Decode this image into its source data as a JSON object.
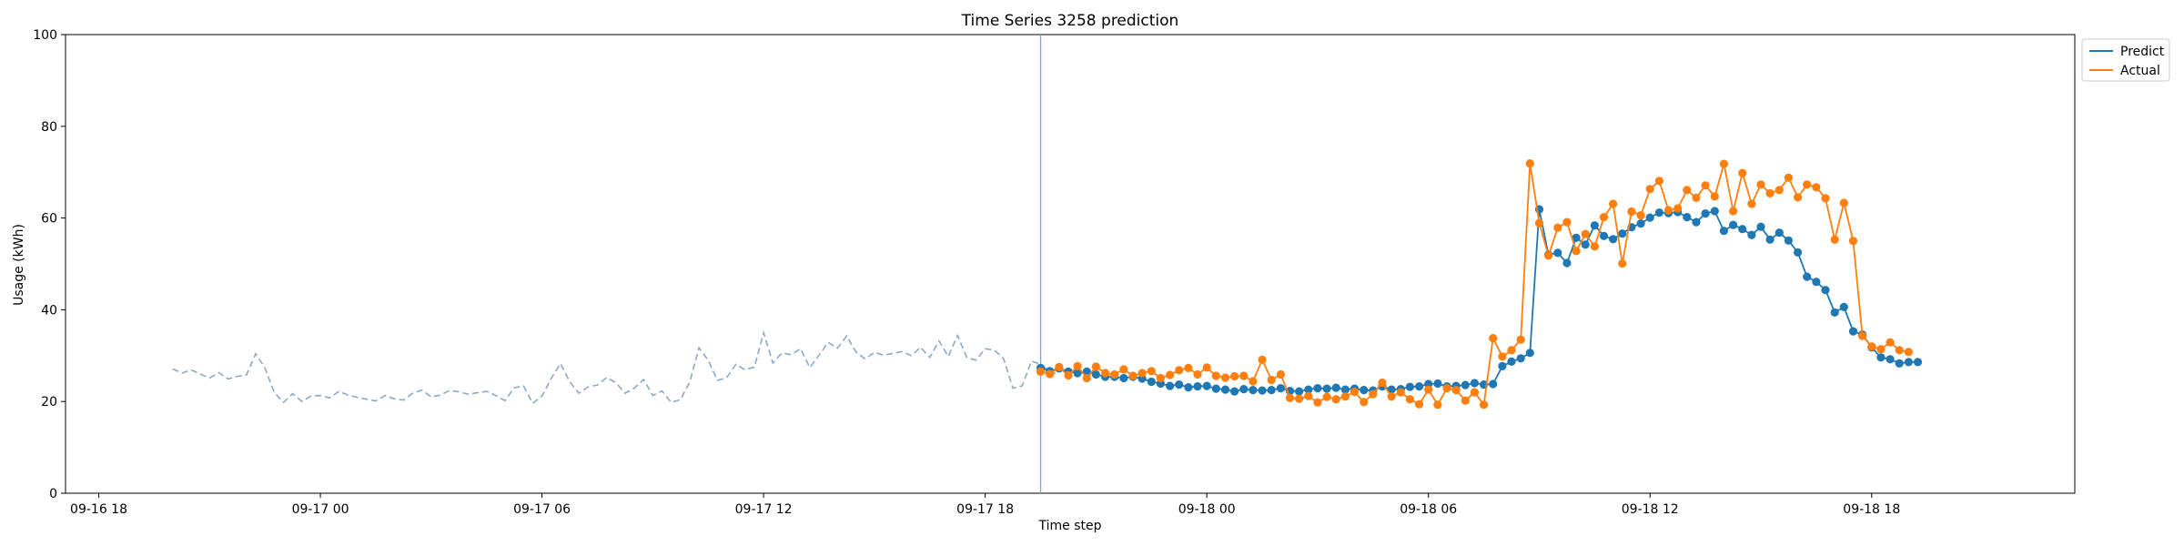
{
  "chart_data": {
    "type": "line",
    "title": "Time Series 3258 prediction",
    "xlabel": "Time step",
    "ylabel": "Usage (kWh)",
    "ylim": [
      0,
      100
    ],
    "y_ticks": [
      0,
      20,
      40,
      60,
      80,
      100
    ],
    "xlim": [
      "2023-09-16 17:06",
      "2023-09-18 23:30"
    ],
    "x_ticks": [
      {
        "label": "09-16 18",
        "t": "2023-09-16 18:00"
      },
      {
        "label": "09-17 00",
        "t": "2023-09-17 00:00"
      },
      {
        "label": "09-17 06",
        "t": "2023-09-17 06:00"
      },
      {
        "label": "09-17 12",
        "t": "2023-09-17 12:00"
      },
      {
        "label": "09-17 18",
        "t": "2023-09-17 18:00"
      },
      {
        "label": "09-18 00",
        "t": "2023-09-18 00:00"
      },
      {
        "label": "09-18 06",
        "t": "2023-09-18 06:00"
      },
      {
        "label": "09-18 12",
        "t": "2023-09-18 12:00"
      },
      {
        "label": "09-18 18",
        "t": "2023-09-18 18:00"
      }
    ],
    "legend_position": "top-right",
    "forecast_start": "2023-09-17 19:30",
    "history": {
      "start": "2023-09-16 20:00",
      "step_minutes": 15,
      "color": "#8aa8c8",
      "style": "dashed",
      "values": [
        27.1,
        26.2,
        26.9,
        26.0,
        25.1,
        26.3,
        24.9,
        25.5,
        25.8,
        30.4,
        27.3,
        22.0,
        19.8,
        21.7,
        20.0,
        21.2,
        21.3,
        20.8,
        22.2,
        21.4,
        20.9,
        20.5,
        20.1,
        21.3,
        20.6,
        20.3,
        21.8,
        22.5,
        21.0,
        21.4,
        22.4,
        22.1,
        21.6,
        21.9,
        22.2,
        21.3,
        20.2,
        23.0,
        23.4,
        19.6,
        21.2,
        25.0,
        28.3,
        24.3,
        21.8,
        23.2,
        23.6,
        25.2,
        24.1,
        21.8,
        22.9,
        24.8,
        21.3,
        22.3,
        19.8,
        20.4,
        24.2,
        31.7,
        29.0,
        24.6,
        25.2,
        28.1,
        26.9,
        27.5,
        35.0,
        28.4,
        30.6,
        30.2,
        31.5,
        27.4,
        30.1,
        32.9,
        31.6,
        34.3,
        30.8,
        29.3,
        30.7,
        30.1,
        30.5,
        30.9,
        30.0,
        31.8,
        29.6,
        33.2,
        29.8,
        34.4,
        29.6,
        29.0,
        31.5,
        31.2,
        29.3,
        22.9,
        23.4,
        28.8,
        28.1,
        26.6,
        25.8
      ]
    },
    "forecast": {
      "start": "2023-09-17 19:30",
      "step_minutes": 15,
      "series": [
        {
          "name": "Predict",
          "color": "#1f77b4",
          "values": [
            27.3,
            26.6,
            27.2,
            26.5,
            26.2,
            26.5,
            25.9,
            25.4,
            25.4,
            25.1,
            25.4,
            25.0,
            24.3,
            23.9,
            23.4,
            23.7,
            23.1,
            23.3,
            23.4,
            22.8,
            22.6,
            22.2,
            22.7,
            22.5,
            22.4,
            22.5,
            22.9,
            22.3,
            22.2,
            22.6,
            22.9,
            22.8,
            23.0,
            22.6,
            22.8,
            22.5,
            22.4,
            23.3,
            22.6,
            22.7,
            23.2,
            23.3,
            23.8,
            23.9,
            23.3,
            23.4,
            23.6,
            24.0,
            23.7,
            23.8,
            27.7,
            28.7,
            29.4,
            30.6,
            61.9,
            52.0,
            52.4,
            50.2,
            55.7,
            54.2,
            58.4,
            56.1,
            55.4,
            56.6,
            58.0,
            58.8,
            60.1,
            61.2,
            61.1,
            61.3,
            60.2,
            59.1,
            61.0,
            61.5,
            57.2,
            58.5,
            57.6,
            56.3,
            58.1,
            55.3,
            56.8,
            55.1,
            52.5,
            47.2,
            46.1,
            44.3,
            39.4,
            40.6,
            35.3,
            34.6,
            31.8,
            29.6,
            29.2,
            28.3,
            28.6,
            28.6
          ]
        },
        {
          "name": "Actual",
          "color": "#ff7f0e",
          "values": [
            26.5,
            26.0,
            27.5,
            25.7,
            27.7,
            25.1,
            27.6,
            26.2,
            25.9,
            27.0,
            25.6,
            26.2,
            26.6,
            25.1,
            25.8,
            26.8,
            27.3,
            25.9,
            27.4,
            25.6,
            25.2,
            25.5,
            25.6,
            24.4,
            29.1,
            24.7,
            25.9,
            20.8,
            20.6,
            21.2,
            19.8,
            21.0,
            20.5,
            21.1,
            22.1,
            19.9,
            21.6,
            24.1,
            21.1,
            22.0,
            20.5,
            19.4,
            22.6,
            19.3,
            22.9,
            22.5,
            20.2,
            22.0,
            19.3,
            33.8,
            29.8,
            31.2,
            33.5,
            71.9,
            58.9,
            51.8,
            57.9,
            59.1,
            52.8,
            56.5,
            53.8,
            60.2,
            63.1,
            50.1,
            61.4,
            60.6,
            66.3,
            68.1,
            61.7,
            62.1,
            66.1,
            64.4,
            67.1,
            64.7,
            71.8,
            61.5,
            69.8,
            63.1,
            67.3,
            65.4,
            66.1,
            68.8,
            64.5,
            67.3,
            66.7,
            64.3,
            55.3,
            63.3,
            55.0,
            34.3,
            32.0,
            31.4,
            32.9,
            31.2,
            30.8
          ]
        }
      ]
    }
  }
}
